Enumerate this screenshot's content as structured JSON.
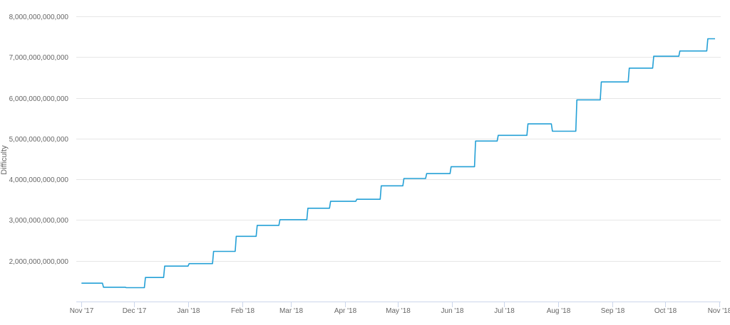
{
  "chart_data": {
    "type": "line",
    "ylabel": "Difficulty",
    "x_tick_labels": [
      "Nov '17",
      "Dec '17",
      "Jan '18",
      "Feb '18",
      "Mar '18",
      "Apr '18",
      "May '18",
      "Jun '18",
      "Jul '18",
      "Aug '18",
      "Sep '18",
      "Oct '18",
      "Nov '18"
    ],
    "x_ticks": [
      "2017-11-01",
      "2017-12-01",
      "2018-01-01",
      "2018-02-01",
      "2018-03-01",
      "2018-04-01",
      "2018-05-01",
      "2018-06-01",
      "2018-07-01",
      "2018-08-01",
      "2018-09-01",
      "2018-10-01",
      "2018-11-01"
    ],
    "x_range": [
      "2017-10-29",
      "2018-11-02"
    ],
    "y_tick_labels": [
      "2,000,000,000,000",
      "3,000,000,000,000",
      "4,000,000,000,000",
      "5,000,000,000,000",
      "6,000,000,000,000",
      "7,000,000,000,000",
      "8,000,000,000,000"
    ],
    "y_ticks": [
      2000000000000,
      3000000000000,
      4000000000000,
      5000000000000,
      6000000000000,
      7000000000000,
      8000000000000
    ],
    "ylim": [
      1000000000000,
      8000000000000
    ],
    "grid": true,
    "line_color": "#24a0d6",
    "series": [
      {
        "x": [
          "2017-11-01",
          "2017-11-13",
          "2017-11-13",
          "2017-11-26",
          "2017-11-26",
          "2017-12-07",
          "2017-12-07",
          "2017-12-18",
          "2017-12-18",
          "2018-01-01",
          "2018-01-01",
          "2018-01-15",
          "2018-01-15",
          "2018-01-28",
          "2018-01-28",
          "2018-02-09",
          "2018-02-09",
          "2018-02-22",
          "2018-02-22",
          "2018-03-10",
          "2018-03-10",
          "2018-03-23",
          "2018-03-23",
          "2018-04-07",
          "2018-04-07",
          "2018-04-21",
          "2018-04-21",
          "2018-05-04",
          "2018-05-04",
          "2018-05-17",
          "2018-05-17",
          "2018-05-31",
          "2018-05-31",
          "2018-06-14",
          "2018-06-14",
          "2018-06-27",
          "2018-06-27",
          "2018-07-14",
          "2018-07-14",
          "2018-07-28",
          "2018-07-28",
          "2018-08-11",
          "2018-08-11",
          "2018-08-25",
          "2018-08-25",
          "2018-09-10",
          "2018-09-10",
          "2018-09-24",
          "2018-09-24",
          "2018-10-09",
          "2018-10-09",
          "2018-10-25",
          "2018-10-25",
          "2018-11-07"
        ],
        "values": [
          1450000000000,
          1450000000000,
          1350000000000,
          1350000000000,
          1340000000000,
          1340000000000,
          1590000000000,
          1590000000000,
          1870000000000,
          1870000000000,
          1930000000000,
          1930000000000,
          2230000000000,
          2230000000000,
          2600000000000,
          2600000000000,
          2870000000000,
          2870000000000,
          3010000000000,
          3010000000000,
          3290000000000,
          3290000000000,
          3460000000000,
          3460000000000,
          3510000000000,
          3510000000000,
          3840000000000,
          3840000000000,
          4020000000000,
          4020000000000,
          4140000000000,
          4140000000000,
          4310000000000,
          4310000000000,
          4940000000000,
          4940000000000,
          5080000000000,
          5080000000000,
          5360000000000,
          5360000000000,
          5180000000000,
          5180000000000,
          5950000000000,
          5950000000000,
          6390000000000,
          6390000000000,
          6730000000000,
          6730000000000,
          7020000000000,
          7020000000000,
          7150000000000,
          7150000000000,
          7450000000000,
          7450000000000
        ]
      }
    ]
  }
}
